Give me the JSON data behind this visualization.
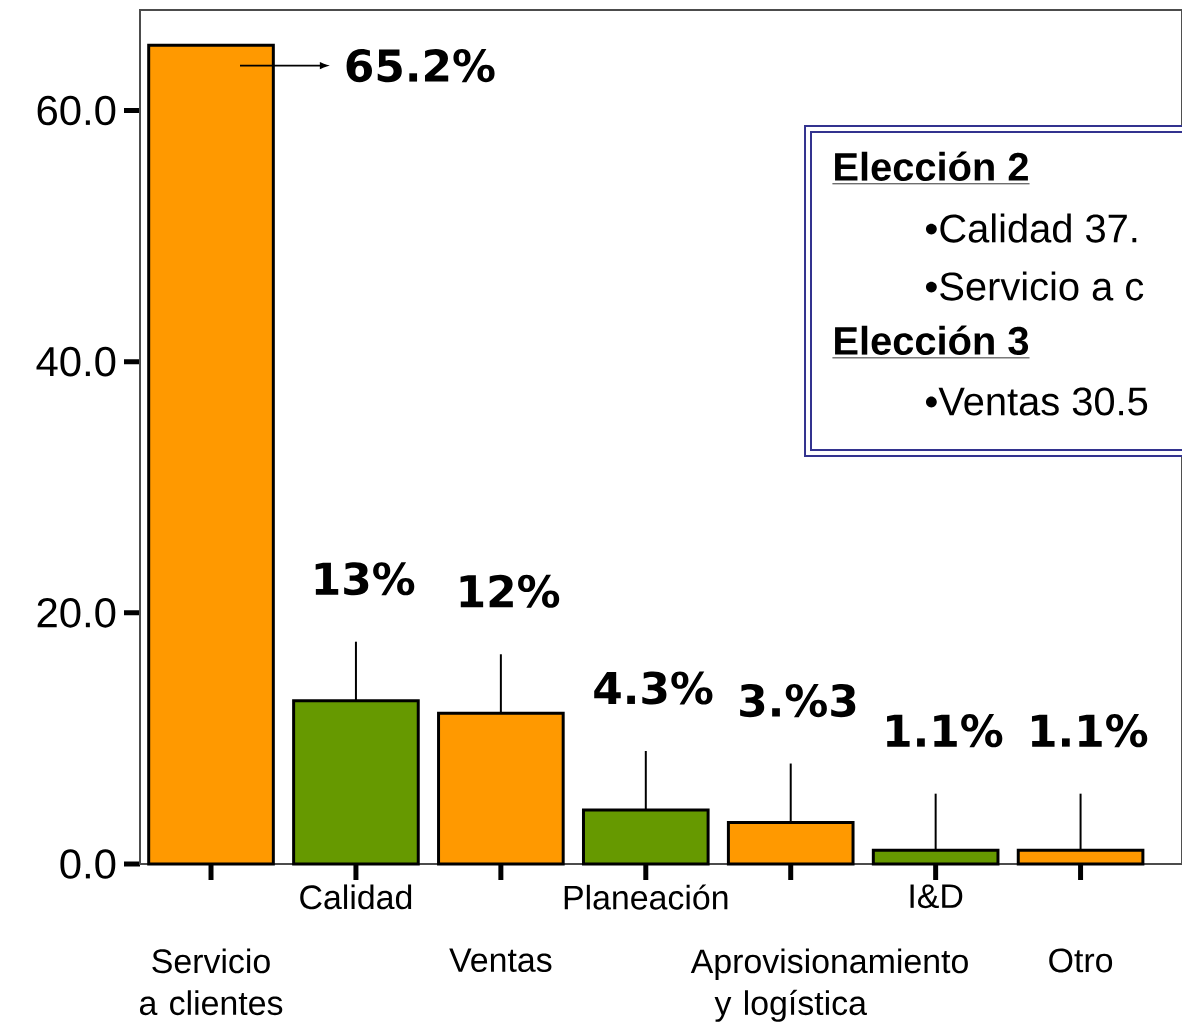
{
  "chart_data": {
    "type": "bar",
    "categories": [
      "Servicio a clientes",
      "Calidad",
      "Ventas",
      "Planeación",
      "Aprovisionamiento y logística",
      "I&D",
      "Otro"
    ],
    "values": [
      65.2,
      13,
      12,
      4.3,
      3.3,
      1.1,
      1.1
    ],
    "colors": [
      "#ff9900",
      "#669900",
      "#ff9900",
      "#669900",
      "#ff9900",
      "#669900",
      "#ff9900"
    ],
    "errors": [
      null,
      [
        13,
        17.7
      ],
      [
        12,
        16.7
      ],
      [
        4.3,
        9
      ],
      [
        3.3,
        8
      ],
      [
        1.1,
        5.6
      ],
      [
        1.1,
        5.6
      ]
    ],
    "value_labels": [
      "65.2%",
      "13%",
      "12%",
      "4.3%",
      "3.%3",
      "1.1%",
      "1.1%"
    ],
    "ylim": [
      0,
      68
    ],
    "yticks": [
      {
        "value": 0,
        "label": "0.0"
      },
      {
        "value": 20,
        "label": "20.0"
      },
      {
        "value": 40,
        "label": "40.0"
      },
      {
        "value": 60,
        "label": "60.0"
      }
    ],
    "annotations": [
      "Elección 2",
      "•Calidad 37.",
      "•Servicio a c",
      "Elección 3",
      "•Ventas 30.5"
    ]
  }
}
